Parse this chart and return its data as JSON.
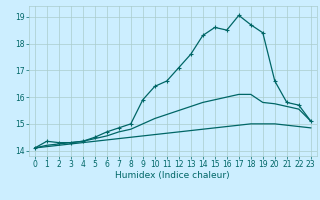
{
  "xlabel": "Humidex (Indice chaleur)",
  "background_color": "#cceeff",
  "grid_color": "#aacccc",
  "line_color": "#006666",
  "xlim": [
    -0.5,
    23.5
  ],
  "ylim": [
    13.8,
    19.4
  ],
  "xticks": [
    0,
    1,
    2,
    3,
    4,
    5,
    6,
    7,
    8,
    9,
    10,
    11,
    12,
    13,
    14,
    15,
    16,
    17,
    18,
    19,
    20,
    21,
    22,
    23
  ],
  "yticks": [
    14,
    15,
    16,
    17,
    18,
    19
  ],
  "series": {
    "line1": [
      14.1,
      14.35,
      14.3,
      14.3,
      14.35,
      14.5,
      14.7,
      14.85,
      15.0,
      15.9,
      16.4,
      16.6,
      17.1,
      17.6,
      18.3,
      18.6,
      18.5,
      19.05,
      18.7,
      18.4,
      16.6,
      15.8,
      15.7,
      15.1
    ],
    "line2": [
      14.1,
      14.2,
      14.25,
      14.3,
      14.35,
      14.45,
      14.55,
      14.7,
      14.8,
      15.0,
      15.2,
      15.35,
      15.5,
      15.65,
      15.8,
      15.9,
      16.0,
      16.1,
      16.1,
      15.8,
      15.75,
      15.65,
      15.55,
      15.1
    ],
    "line3": [
      14.1,
      14.15,
      14.2,
      14.25,
      14.3,
      14.35,
      14.4,
      14.45,
      14.5,
      14.55,
      14.6,
      14.65,
      14.7,
      14.75,
      14.8,
      14.85,
      14.9,
      14.95,
      15.0,
      15.0,
      15.0,
      14.95,
      14.9,
      14.85
    ]
  },
  "marker": "+",
  "markersize": 3.5,
  "linewidth": 0.9,
  "xlabel_fontsize": 6.5,
  "tick_fontsize": 5.5
}
